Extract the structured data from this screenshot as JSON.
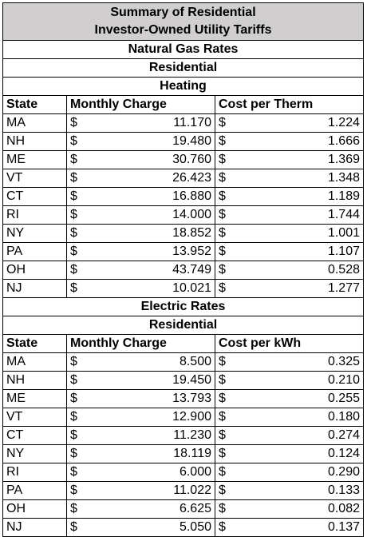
{
  "title_lines": [
    "Summary of Residential",
    "Investor-Owned Utility Tariffs"
  ],
  "currency": "$",
  "sections": [
    {
      "heading": "Natural Gas Rates",
      "subheadings": [
        "Residential",
        "Heating"
      ],
      "columns": [
        "State",
        "Monthly Charge",
        "Cost per Therm"
      ],
      "rows": [
        [
          "MA",
          "11.170",
          "1.224"
        ],
        [
          "NH",
          "19.480",
          "1.666"
        ],
        [
          "ME",
          "30.760",
          "1.369"
        ],
        [
          "VT",
          "26.423",
          "1.348"
        ],
        [
          "CT",
          "16.880",
          "1.189"
        ],
        [
          "RI",
          "14.000",
          "1.744"
        ],
        [
          "NY",
          "18.852",
          "1.001"
        ],
        [
          "PA",
          "13.952",
          "1.107"
        ],
        [
          "OH",
          "43.749",
          "0.528"
        ],
        [
          "NJ",
          "10.021",
          "1.277"
        ]
      ]
    },
    {
      "heading": "Electric Rates",
      "subheadings": [
        "Residential"
      ],
      "columns": [
        "State",
        "Monthly Charge",
        "Cost per kWh"
      ],
      "rows": [
        [
          "MA",
          "8.500",
          "0.325"
        ],
        [
          "NH",
          "19.450",
          "0.210"
        ],
        [
          "ME",
          "13.793",
          "0.255"
        ],
        [
          "VT",
          "12.900",
          "0.180"
        ],
        [
          "CT",
          "11.230",
          "0.274"
        ],
        [
          "NY",
          "18.119",
          "0.124"
        ],
        [
          "RI",
          "6.000",
          "0.290"
        ],
        [
          "PA",
          "11.022",
          "0.133"
        ],
        [
          "OH",
          "6.625",
          "0.082"
        ],
        [
          "NJ",
          "5.050",
          "0.137"
        ]
      ]
    }
  ]
}
